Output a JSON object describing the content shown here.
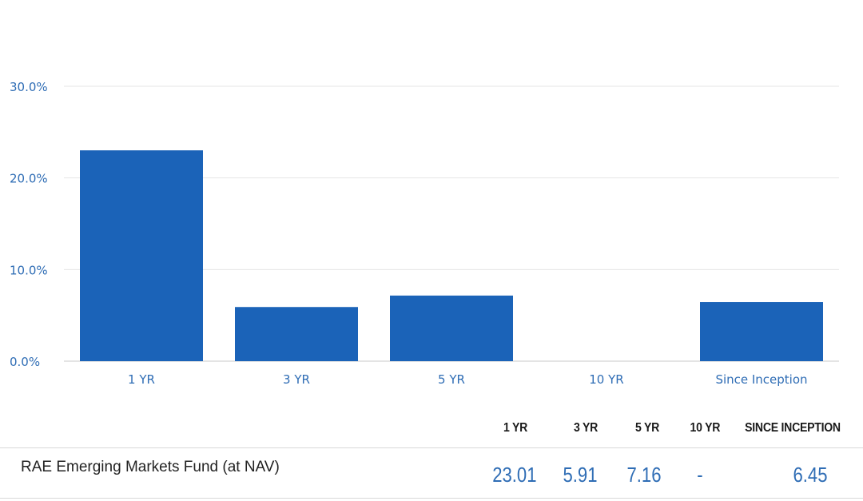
{
  "chart_data": {
    "type": "bar",
    "categories": [
      "1 YR",
      "3 YR",
      "5 YR",
      "10 YR",
      "Since Inception"
    ],
    "values": [
      23.01,
      5.91,
      7.16,
      null,
      6.45
    ],
    "ylim": [
      0,
      30
    ],
    "yticks": [
      "0.0%",
      "10.0%",
      "20.0%",
      "30.0%"
    ],
    "ytick_values": [
      0,
      10,
      20,
      30
    ],
    "grid": true,
    "bar_color": "#1b63b8"
  },
  "table": {
    "headers": [
      "1 YR",
      "3 YR",
      "5 YR",
      "10 YR",
      "SINCE INCEPTION"
    ],
    "row": {
      "name": "RAE Emerging Markets Fund (at NAV)",
      "values": [
        "23.01",
        "5.91",
        "7.16",
        "-",
        "6.45"
      ]
    }
  }
}
